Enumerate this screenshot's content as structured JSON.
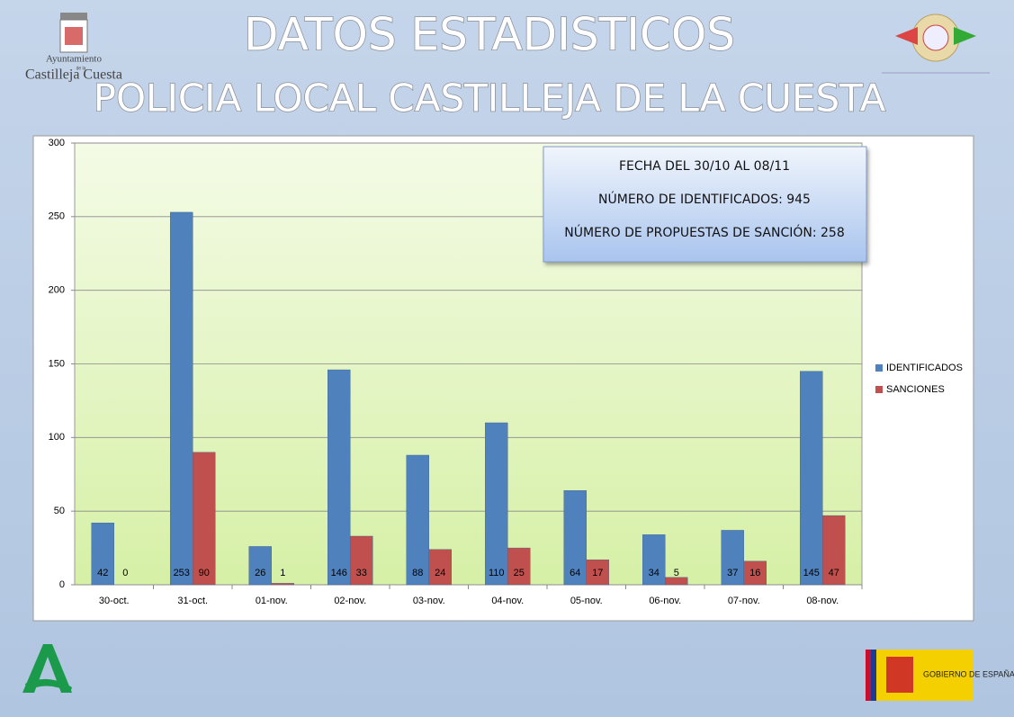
{
  "header": {
    "title": "DATOS ESTADISTICOS",
    "subtitle": "POLICIA LOCAL CASTILLEJA DE LA CUESTA",
    "logo_left_line1": "Ayuntamiento",
    "logo_left_line2": "de la",
    "logo_left_line3": "Castilleja Cuesta",
    "logo_right_bottom": "GOBIERNO DE ESPAÑA"
  },
  "chart_data": {
    "type": "bar",
    "categories": [
      "30-oct.",
      "31-oct.",
      "01-nov.",
      "02-nov.",
      "03-nov.",
      "04-nov.",
      "05-nov.",
      "06-nov.",
      "07-nov.",
      "08-nov."
    ],
    "series": [
      {
        "name": "IDENTIFICADOS",
        "color": "#4f81bd",
        "values": [
          42,
          253,
          26,
          146,
          88,
          110,
          64,
          34,
          37,
          145
        ]
      },
      {
        "name": "SANCIONES",
        "color": "#c0504d",
        "values": [
          0,
          90,
          1,
          33,
          24,
          25,
          17,
          5,
          16,
          47
        ]
      }
    ],
    "ylim": [
      0,
      300
    ],
    "yticks": [
      0,
      50,
      100,
      150,
      200,
      250,
      300
    ],
    "grid": true,
    "legend": "right",
    "annotations": [
      "FECHA DEL 30/10 AL 08/11",
      "NÚMERO DE IDENTIFICADOS: 945",
      "NÚMERO DE PROPUESTAS DE SANCIÓN: 258"
    ]
  }
}
